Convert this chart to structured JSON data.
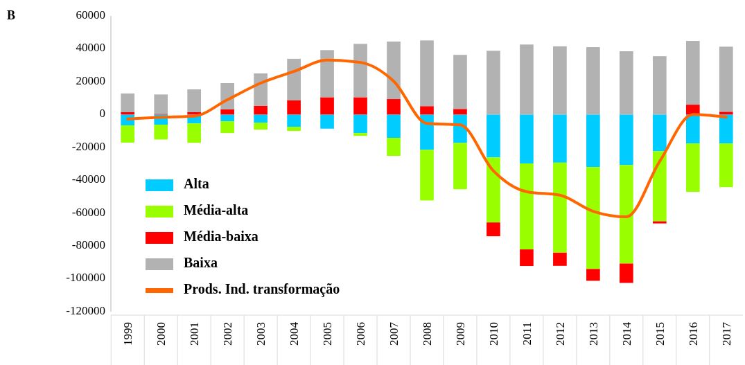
{
  "chart_data": {
    "type": "bar",
    "title": "B",
    "stacked": true,
    "legend": "bottom left",
    "categories": [
      "1999",
      "2000",
      "2001",
      "2002",
      "2003",
      "2004",
      "2005",
      "2006",
      "2007",
      "2008",
      "2009",
      "2010",
      "2011",
      "2012",
      "2013",
      "2014",
      "2015",
      "2016",
      "2017"
    ],
    "ylim": [
      -120000,
      60000
    ],
    "yticks": [
      -120000,
      -100000,
      -80000,
      -60000,
      -40000,
      -20000,
      0,
      20000,
      40000,
      60000
    ],
    "series": [
      {
        "name": "Alta",
        "color": "#00ccff",
        "values": [
          -6600,
          -6200,
          -5400,
          -4100,
          -5000,
          -7500,
          -8600,
          -11300,
          -14200,
          -21500,
          -17300,
          -26100,
          -29800,
          -29300,
          -32000,
          -30800,
          -22400,
          -17600,
          -17600
        ]
      },
      {
        "name": "Média-alta",
        "color": "#99ff00",
        "values": [
          -10500,
          -9000,
          -11800,
          -7200,
          -4200,
          -2500,
          0,
          -1700,
          -11000,
          -30800,
          -28200,
          -39600,
          -52300,
          -54800,
          -62000,
          -59900,
          -42600,
          -29500,
          -26600
        ]
      },
      {
        "name": "Média-baixa",
        "color": "#ff0000",
        "values": [
          1400,
          400,
          1400,
          3200,
          5200,
          8600,
          10500,
          10500,
          9400,
          5100,
          3400,
          -8400,
          -10100,
          -8000,
          -7200,
          -11800,
          -1300,
          6000,
          1700
        ]
      },
      {
        "name": "Baixa",
        "color": "#b2b2b2",
        "values": [
          11400,
          11800,
          13900,
          15900,
          19800,
          25300,
          28700,
          32500,
          35000,
          40000,
          32900,
          38800,
          42600,
          41500,
          41000,
          38500,
          35500,
          38800,
          39600
        ]
      },
      {
        "name": "Prods. Ind. transformação",
        "type": "line",
        "color": "#ff6600",
        "values": [
          -2700,
          -1700,
          -1000,
          9000,
          19100,
          26200,
          33100,
          31700,
          20300,
          -5400,
          -6300,
          -34300,
          -47000,
          -49100,
          -58900,
          -62300,
          -28600,
          0,
          -1600
        ]
      }
    ]
  }
}
